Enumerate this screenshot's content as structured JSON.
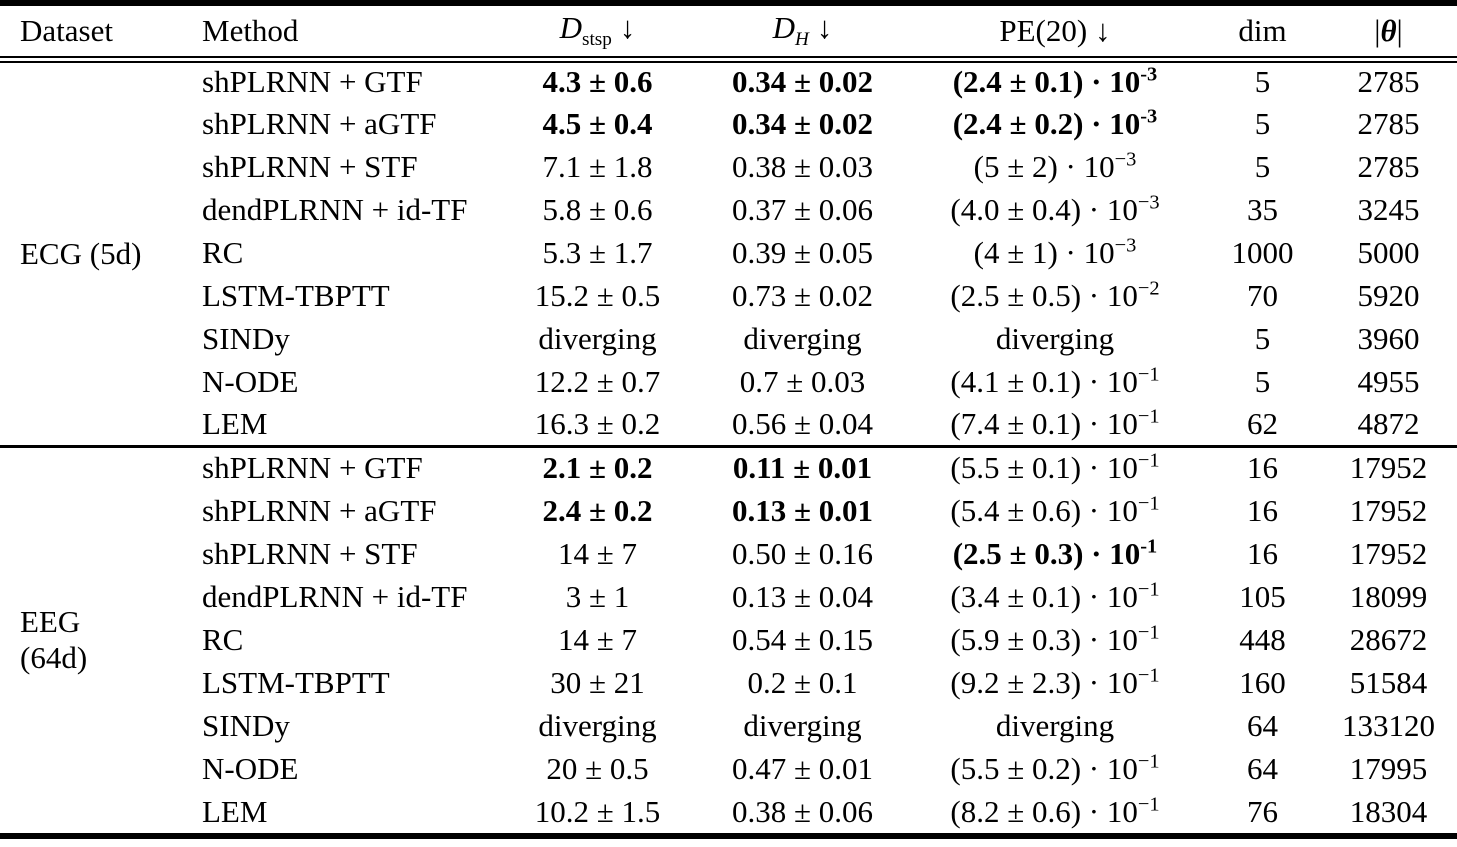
{
  "table": {
    "header": {
      "dataset": "Dataset",
      "method": "Method",
      "dstsp": {
        "main": "D",
        "sub": "stsp",
        "arrow": "↓"
      },
      "dh": {
        "main": "D",
        "sub": "H",
        "arrow": "↓"
      },
      "pe": {
        "main": "PE(20)",
        "arrow": "↓"
      },
      "dim": "dim",
      "theta": {
        "pre": "|",
        "main": "θ",
        "post": "|"
      }
    },
    "groups": [
      {
        "dataset": {
          "line1": "ECG (5d)",
          "line2": ""
        },
        "rows": [
          {
            "method": "shPLRNN + GTF",
            "dstsp": {
              "t": "4.3 ± 0.6",
              "b": true
            },
            "dh": {
              "t": "0.34 ± 0.02",
              "b": true
            },
            "pe": {
              "base": "(2.4 ± 0.1) · 10",
              "exp": "-3",
              "b": true
            },
            "dim": "5",
            "theta": "2785"
          },
          {
            "method": "shPLRNN + aGTF",
            "dstsp": {
              "t": "4.5 ± 0.4",
              "b": true
            },
            "dh": {
              "t": "0.34 ± 0.02",
              "b": true
            },
            "pe": {
              "base": "(2.4 ± 0.2) · 10",
              "exp": "-3",
              "b": true
            },
            "dim": "5",
            "theta": "2785"
          },
          {
            "method": "shPLRNN + STF",
            "dstsp": {
              "t": "7.1 ± 1.8",
              "b": false
            },
            "dh": {
              "t": "0.38 ± 0.03",
              "b": false
            },
            "pe": {
              "base": "(5 ± 2) · 10",
              "exp": "−3",
              "b": false
            },
            "dim": "5",
            "theta": "2785"
          },
          {
            "method": "dendPLRNN + id-TF",
            "dstsp": {
              "t": "5.8 ± 0.6",
              "b": false
            },
            "dh": {
              "t": "0.37 ± 0.06",
              "b": false
            },
            "pe": {
              "base": "(4.0 ± 0.4) · 10",
              "exp": "−3",
              "b": false
            },
            "dim": "35",
            "theta": "3245"
          },
          {
            "method": "RC",
            "dstsp": {
              "t": "5.3 ± 1.7",
              "b": false
            },
            "dh": {
              "t": "0.39 ± 0.05",
              "b": false
            },
            "pe": {
              "base": "(4 ± 1) · 10",
              "exp": "−3",
              "b": false
            },
            "dim": "1000",
            "theta": "5000"
          },
          {
            "method": "LSTM-TBPTT",
            "dstsp": {
              "t": "15.2 ± 0.5",
              "b": false
            },
            "dh": {
              "t": "0.73 ± 0.02",
              "b": false
            },
            "pe": {
              "base": "(2.5 ± 0.5) · 10",
              "exp": "−2",
              "b": false
            },
            "dim": "70",
            "theta": "5920"
          },
          {
            "method": "SINDy",
            "dstsp": {
              "t": "diverging",
              "b": false
            },
            "dh": {
              "t": "diverging",
              "b": false
            },
            "pe": {
              "base": "diverging",
              "exp": "",
              "b": false
            },
            "dim": "5",
            "theta": "3960"
          },
          {
            "method": "N-ODE",
            "dstsp": {
              "t": "12.2 ± 0.7",
              "b": false
            },
            "dh": {
              "t": "0.7 ± 0.03",
              "b": false
            },
            "pe": {
              "base": "(4.1 ± 0.1) · 10",
              "exp": "−1",
              "b": false
            },
            "dim": "5",
            "theta": "4955"
          },
          {
            "method": "LEM",
            "dstsp": {
              "t": "16.3 ± 0.2",
              "b": false
            },
            "dh": {
              "t": "0.56 ± 0.04",
              "b": false
            },
            "pe": {
              "base": "(7.4 ± 0.1) · 10",
              "exp": "−1",
              "b": false
            },
            "dim": "62",
            "theta": "4872"
          }
        ]
      },
      {
        "dataset": {
          "line1": "EEG",
          "line2": "(64d)"
        },
        "rows": [
          {
            "method": "shPLRNN + GTF",
            "dstsp": {
              "t": "2.1 ± 0.2",
              "b": true
            },
            "dh": {
              "t": "0.11 ± 0.01",
              "b": true
            },
            "pe": {
              "base": "(5.5 ± 0.1) · 10",
              "exp": "−1",
              "b": false
            },
            "dim": "16",
            "theta": "17952"
          },
          {
            "method": "shPLRNN + aGTF",
            "dstsp": {
              "t": "2.4 ± 0.2",
              "b": true
            },
            "dh": {
              "t": "0.13 ± 0.01",
              "b": true
            },
            "pe": {
              "base": "(5.4 ± 0.6) · 10",
              "exp": "−1",
              "b": false
            },
            "dim": "16",
            "theta": "17952"
          },
          {
            "method": "shPLRNN + STF",
            "dstsp": {
              "t": "14 ± 7",
              "b": false
            },
            "dh": {
              "t": "0.50 ± 0.16",
              "b": false
            },
            "pe": {
              "base": "(2.5 ± 0.3) · 10",
              "exp": "-1",
              "b": true
            },
            "dim": "16",
            "theta": "17952"
          },
          {
            "method": "dendPLRNN + id-TF",
            "dstsp": {
              "t": "3 ± 1",
              "b": false
            },
            "dh": {
              "t": "0.13 ± 0.04",
              "b": false
            },
            "pe": {
              "base": "(3.4 ± 0.1) · 10",
              "exp": "−1",
              "b": false
            },
            "dim": "105",
            "theta": "18099"
          },
          {
            "method": "RC",
            "dstsp": {
              "t": "14 ± 7",
              "b": false
            },
            "dh": {
              "t": "0.54 ± 0.15",
              "b": false
            },
            "pe": {
              "base": "(5.9 ± 0.3) · 10",
              "exp": "−1",
              "b": false
            },
            "dim": "448",
            "theta": "28672"
          },
          {
            "method": "LSTM-TBPTT",
            "dstsp": {
              "t": "30 ± 21",
              "b": false
            },
            "dh": {
              "t": "0.2 ± 0.1",
              "b": false
            },
            "pe": {
              "base": "(9.2 ± 2.3) · 10",
              "exp": "−1",
              "b": false
            },
            "dim": "160",
            "theta": "51584"
          },
          {
            "method": "SINDy",
            "dstsp": {
              "t": "diverging",
              "b": false
            },
            "dh": {
              "t": "diverging",
              "b": false
            },
            "pe": {
              "base": "diverging",
              "exp": "",
              "b": false
            },
            "dim": "64",
            "theta": "133120"
          },
          {
            "method": "N-ODE",
            "dstsp": {
              "t": "20 ± 0.5",
              "b": false
            },
            "dh": {
              "t": "0.47 ± 0.01",
              "b": false
            },
            "pe": {
              "base": "(5.5 ± 0.2) · 10",
              "exp": "−1",
              "b": false
            },
            "dim": "64",
            "theta": "17995"
          },
          {
            "method": "LEM",
            "dstsp": {
              "t": "10.2 ± 1.5",
              "b": false
            },
            "dh": {
              "t": "0.38 ± 0.06",
              "b": false
            },
            "pe": {
              "base": "(8.2 ± 0.6) · 10",
              "exp": "−1",
              "b": false
            },
            "dim": "76",
            "theta": "18304"
          }
        ]
      }
    ]
  }
}
